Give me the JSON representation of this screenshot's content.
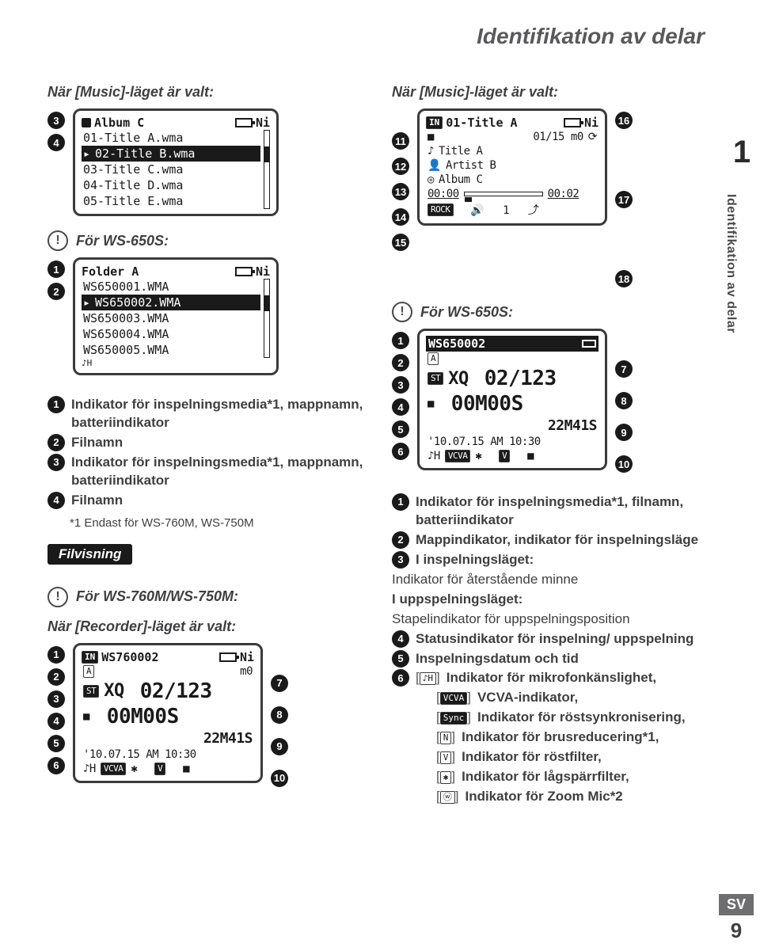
{
  "page_title": "Identifikation av delar",
  "side": {
    "chapter_num": "1",
    "chapter_label": "Identifikation av delar",
    "lang_tag": "SV",
    "page_num": "9"
  },
  "left": {
    "subhead": "När [Music]-läget är valt:",
    "screen1": {
      "callouts_left": [
        "3",
        "4"
      ],
      "title": "Album C",
      "title_badge": "Ni",
      "rows": [
        {
          "text": "01-Title A.wma",
          "selected": false
        },
        {
          "text": "02-Title B.wma",
          "selected": true
        },
        {
          "text": "03-Title C.wma",
          "selected": false
        },
        {
          "text": "04-Title D.wma",
          "selected": false
        },
        {
          "text": "05-Title E.wma",
          "selected": false
        }
      ]
    },
    "note1_label": "För WS-650S:",
    "screen2": {
      "callouts_left": [
        "1",
        "2"
      ],
      "title": "Folder A",
      "title_badge": "Ni",
      "rows": [
        {
          "text": "WS650001.WMA",
          "selected": false
        },
        {
          "text": "WS650002.WMA",
          "selected": true
        },
        {
          "text": "WS650003.WMA",
          "selected": false
        },
        {
          "text": "WS650004.WMA",
          "selected": false
        },
        {
          "text": "WS650005.WMA",
          "selected": false
        }
      ]
    },
    "legend": [
      {
        "n": "1",
        "t": "Indikator för inspelningsmedia*1, mappnamn, batteriindikator"
      },
      {
        "n": "2",
        "t": "Filnamn"
      },
      {
        "n": "3",
        "t": "Indikator för inspelningsmedia*1, mappnamn, batteriindikator"
      },
      {
        "n": "4",
        "t": "Filnamn"
      }
    ],
    "footnote": "*1 Endast för WS-760M, WS-750M",
    "pill": "Filvisning",
    "note2_label": "För WS-760M/WS-750M:",
    "subhead2": "När [Recorder]-läget är valt:",
    "screen3": {
      "callouts_left": [
        "1",
        "2",
        "3",
        "4",
        "5",
        "6"
      ],
      "callouts_right": [
        "7",
        "8",
        "9",
        "10"
      ],
      "line0": "WS760002",
      "line0_badge": "Ni",
      "line1_left": "A",
      "line1_right": "m0",
      "counter": "02/123",
      "time_big": "00M00S",
      "time_small": "22M41S",
      "date": "'10.07.15 AM 10:30",
      "icons": "VCVA"
    }
  },
  "right": {
    "subhead": "När [Music]-läget är valt:",
    "screen1": {
      "callouts_left": [
        "11",
        "12",
        "13",
        "14",
        "15"
      ],
      "callouts_right": [
        "16",
        "17",
        "18"
      ],
      "line0": "01-Title A",
      "line0_badge": "Ni",
      "line1": "01/15 m0",
      "r1": "Title A",
      "r2": "Artist B",
      "r3": "Album C",
      "time_l": "00:00",
      "time_r": "00:02",
      "bottom": "ROCK"
    },
    "note1_label": "För WS-650S:",
    "screen2": {
      "callouts_left": [
        "1",
        "2",
        "3",
        "4",
        "5",
        "6"
      ],
      "callouts_right": [
        "7",
        "8",
        "9",
        "10"
      ],
      "file": "WS650002",
      "counter": "02/123",
      "time_big": "00M00S",
      "time_small": "22M41S",
      "date": "'10.07.15 AM 10:30",
      "icons": "VCVA"
    },
    "legend": [
      {
        "n": "1",
        "t": "Indikator för inspelningsmedia*1, filnamn, batteriindikator",
        "bold": true
      },
      {
        "n": "2",
        "t": "Mappindikator, indikator för inspelningsläge",
        "bold": true
      },
      {
        "n": "3",
        "t": "I inspelningsläget:",
        "bold": true
      },
      {
        "plain": "Indikator för återstående minne"
      },
      {
        "boldline": "I uppspelningsläget:"
      },
      {
        "plain": "Stapelindikator för uppspelningsposition"
      },
      {
        "n": "4",
        "t": "Statusindikator för inspelning/ uppspelning",
        "bold": true
      },
      {
        "n": "5",
        "t": "Inspelningsdatum och tid",
        "bold": true
      },
      {
        "n": "6",
        "icon": "♪H",
        "t": "Indikator för mikrofonkänslighet,",
        "bold": true
      },
      {
        "icon_dark": "VCVA",
        "t": "VCVA-indikator,",
        "bold": true,
        "indent": true
      },
      {
        "icon_dark": "Sync",
        "t": "Indikator för röstsynkronisering,",
        "bold": true,
        "indent": true
      },
      {
        "icon_box": "N",
        "t": "Indikator för brusreducering*1,",
        "bold": true,
        "indent": true
      },
      {
        "icon_box": "V",
        "t": "Indikator för röstfilter,",
        "bold": true,
        "indent": true
      },
      {
        "icon_box": "✱",
        "t": "Indikator för lågspärrfilter,",
        "bold": true,
        "indent": true
      },
      {
        "icon_box": "ⓦ",
        "t": "Indikator för Zoom Mic*2",
        "bold": true,
        "indent": true
      }
    ]
  }
}
